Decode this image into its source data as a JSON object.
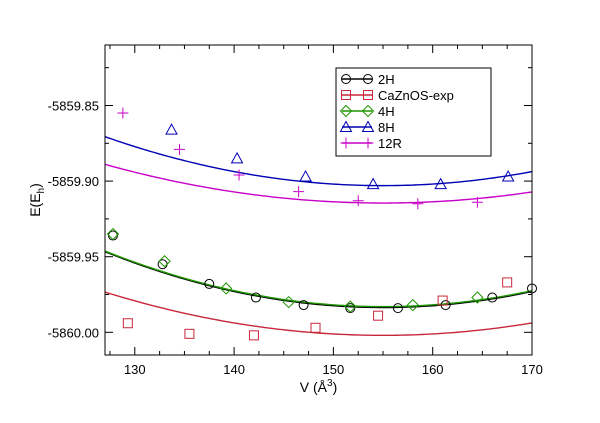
{
  "chart_data": {
    "type": "line",
    "title": "",
    "xlabel": {
      "base": "V (Å",
      "sup": "3",
      "end": ")"
    },
    "ylabel": {
      "base": "E(E",
      "sub": "h",
      "end": ")"
    },
    "xlim": [
      127,
      170
    ],
    "ylim": [
      -5860.015,
      -5859.81
    ],
    "x_ticks": [
      130,
      140,
      150,
      160,
      170
    ],
    "x_tick_labels": [
      "130",
      "140",
      "150",
      "160",
      "170"
    ],
    "y_ticks": [
      -5860.0,
      -5859.95,
      -5859.9,
      -5859.85
    ],
    "y_tick_labels": [
      "-5860.00",
      "-5859.95",
      "-5859.90",
      "-5859.85"
    ],
    "grid": false,
    "legend_position": "top-right",
    "series": [
      {
        "name": "2H",
        "color": "#000000",
        "marker": "circle",
        "fit_quadratic": {
          "a": 4.71e-05,
          "b": 0.0152,
          "c": -5859.9836
        },
        "points": [
          [
            127.8,
            -5859.936
          ],
          [
            132.8,
            -5859.955
          ],
          [
            137.5,
            -5859.968
          ],
          [
            142.2,
            -5859.977
          ],
          [
            147.0,
            -5859.982
          ],
          [
            151.7,
            -5859.984
          ],
          [
            156.5,
            -5859.984
          ],
          [
            161.3,
            -5859.982
          ],
          [
            166.0,
            -5859.977
          ],
          [
            170.0,
            -5859.971
          ]
        ]
      },
      {
        "name": "CaZnOS-exp",
        "color": "#c8283c",
        "marker": "square",
        "fit_quadratic": {
          "a": 3.65e-05,
          "b": 0.014,
          "c": -5860.002
        },
        "points": [
          [
            129.3,
            -5859.994
          ],
          [
            135.5,
            -5860.001
          ],
          [
            142.0,
            -5860.002
          ],
          [
            148.2,
            -5859.997
          ],
          [
            154.5,
            -5859.989
          ],
          [
            161.0,
            -5859.979
          ],
          [
            167.5,
            -5859.967
          ]
        ]
      },
      {
        "name": "4H",
        "color": "#1e9600",
        "marker": "diamond",
        "fit_quadratic": {
          "a": 4.69e-05,
          "b": 0.0152,
          "c": -5859.983
        },
        "points": [
          [
            127.8,
            -5859.935
          ],
          [
            133.0,
            -5859.953
          ],
          [
            139.2,
            -5859.971
          ],
          [
            145.5,
            -5859.98
          ],
          [
            151.7,
            -5859.983
          ],
          [
            158.0,
            -5859.982
          ],
          [
            164.5,
            -5859.977
          ]
        ]
      },
      {
        "name": "8H",
        "color": "#0000b4",
        "marker": "triangle",
        "fit_quadratic": {
          "a": 4.13e-05,
          "b": 0.015,
          "c": -5859.903
        },
        "points": [
          [
            133.7,
            -5859.866
          ],
          [
            140.3,
            -5859.885
          ],
          [
            147.2,
            -5859.897
          ],
          [
            154.0,
            -5859.902
          ],
          [
            160.8,
            -5859.902
          ],
          [
            167.6,
            -5859.897
          ]
        ]
      },
      {
        "name": "12R",
        "color": "#c800c8",
        "marker": "plus",
        "fit_quadratic": {
          "a": 3.26e-05,
          "b": 0.0159,
          "c": -5859.9145
        },
        "points": [
          [
            128.8,
            -5859.855
          ],
          [
            134.5,
            -5859.879
          ],
          [
            140.5,
            -5859.896
          ],
          [
            146.5,
            -5859.907
          ],
          [
            152.5,
            -5859.913
          ],
          [
            158.5,
            -5859.915
          ],
          [
            164.5,
            -5859.914
          ]
        ]
      }
    ]
  }
}
